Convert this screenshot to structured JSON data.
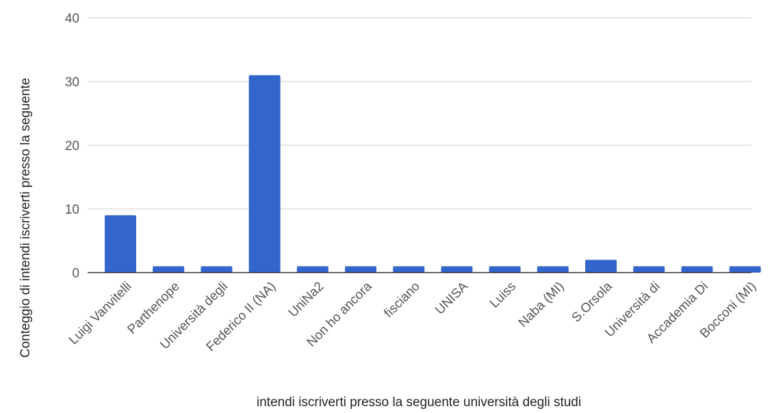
{
  "chart_data": {
    "type": "bar",
    "categories": [
      "Luigi Vanvitelli",
      "Parthenope",
      "Università degli",
      "Federico II (NA)",
      "UniNa2",
      "Non ho ancora",
      "fisciano",
      "UNISA",
      "Luiss",
      "Naba (MI)",
      "S.Orsola",
      "Università di",
      "Accademia Di",
      "Bocconi (MI)"
    ],
    "values": [
      9,
      1,
      1,
      31,
      1,
      1,
      1,
      1,
      1,
      1,
      2,
      1,
      1,
      1
    ],
    "xlabel": "intendi iscriverti presso la seguente università degli studi",
    "ylabel": "Conteggio di intendi iscriverti presso la seguente",
    "ylim": [
      0,
      40
    ],
    "yticks": [
      "0",
      "10",
      "20",
      "30",
      "40"
    ],
    "grid": true,
    "bar_color": "#3366cc",
    "grid_color": "#cccccc",
    "baseline_color": "#333333"
  }
}
